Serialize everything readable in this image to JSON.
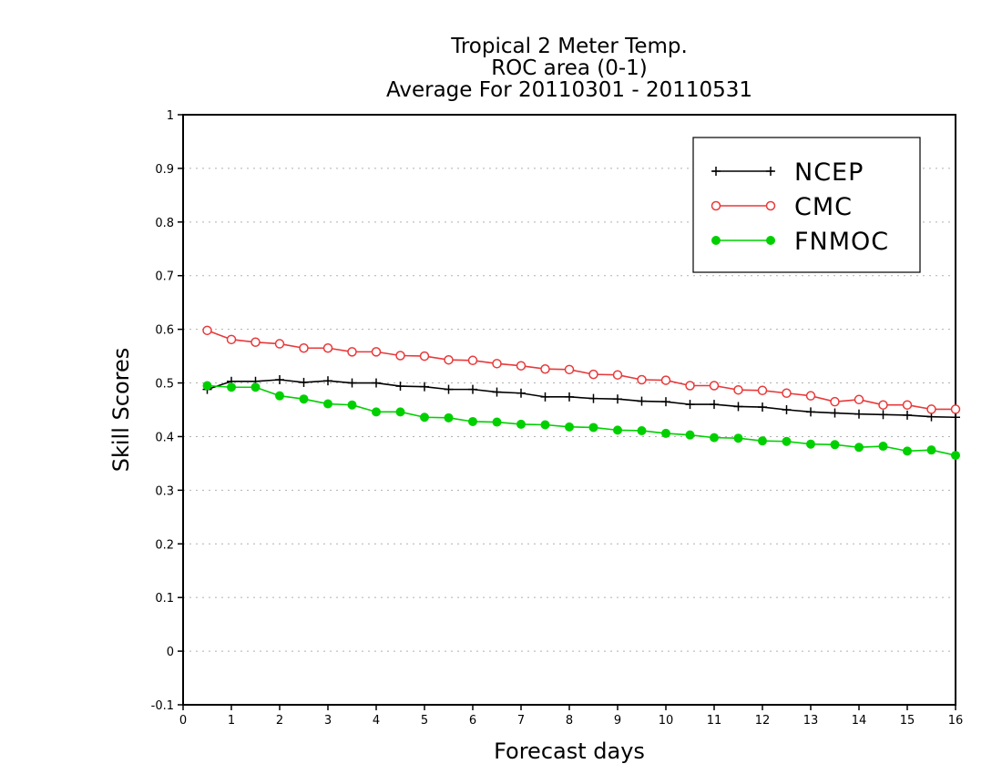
{
  "chart_data": {
    "type": "line",
    "title": [
      "Tropical 2 Meter Temp.",
      "ROC area (0-1)",
      "Average For 20110301 - 20110531"
    ],
    "xlabel": "Forecast days",
    "ylabel": "Skill Scores",
    "xlim": [
      0,
      16
    ],
    "ylim": [
      -0.1,
      1
    ],
    "xticks": [
      0,
      1,
      2,
      3,
      4,
      5,
      6,
      7,
      8,
      9,
      10,
      11,
      12,
      13,
      14,
      15,
      16
    ],
    "yticks": [
      -0.1,
      0,
      0.1,
      0.2,
      0.3,
      0.4,
      0.5,
      0.6,
      0.7,
      0.8,
      0.9,
      1
    ],
    "ytick_labels": [
      "-0.1",
      "0",
      "0.1",
      "0.2",
      "0.3",
      "0.4",
      "0.5",
      "0.6",
      "0.7",
      "0.8",
      "0.9",
      "1"
    ],
    "grid": true,
    "legend_position": "top-right",
    "x": [
      0.5,
      1,
      1.5,
      2,
      2.5,
      3,
      3.5,
      4,
      4.5,
      5,
      5.5,
      6,
      6.5,
      7,
      7.5,
      8,
      8.5,
      9,
      9.5,
      10,
      10.5,
      11,
      11.5,
      12,
      12.5,
      13,
      13.5,
      14,
      14.5,
      15,
      15.5,
      16
    ],
    "series": [
      {
        "name": "NCEP",
        "color": "#000000",
        "marker": "plus",
        "values": [
          0.488,
          0.503,
          0.503,
          0.506,
          0.501,
          0.504,
          0.5,
          0.5,
          0.494,
          0.493,
          0.488,
          0.488,
          0.483,
          0.481,
          0.474,
          0.474,
          0.471,
          0.47,
          0.466,
          0.465,
          0.46,
          0.46,
          0.456,
          0.455,
          0.45,
          0.446,
          0.444,
          0.442,
          0.441,
          0.44,
          0.437,
          0.436
        ]
      },
      {
        "name": "CMC",
        "color": "#e8393a",
        "marker": "open-circle",
        "values": [
          0.598,
          0.581,
          0.576,
          0.573,
          0.565,
          0.565,
          0.558,
          0.558,
          0.551,
          0.55,
          0.543,
          0.542,
          0.536,
          0.532,
          0.526,
          0.525,
          0.516,
          0.515,
          0.506,
          0.505,
          0.495,
          0.495,
          0.487,
          0.486,
          0.481,
          0.476,
          0.465,
          0.469,
          0.459,
          0.459,
          0.451,
          0.451
        ]
      },
      {
        "name": "FNMOC",
        "color": "#00d000",
        "marker": "filled-circle",
        "values": [
          0.495,
          0.492,
          0.492,
          0.476,
          0.47,
          0.461,
          0.459,
          0.446,
          0.446,
          0.436,
          0.435,
          0.428,
          0.427,
          0.423,
          0.422,
          0.418,
          0.417,
          0.412,
          0.411,
          0.406,
          0.403,
          0.398,
          0.397,
          0.392,
          0.391,
          0.386,
          0.385,
          0.38,
          0.382,
          0.373,
          0.375,
          0.365
        ]
      }
    ]
  }
}
